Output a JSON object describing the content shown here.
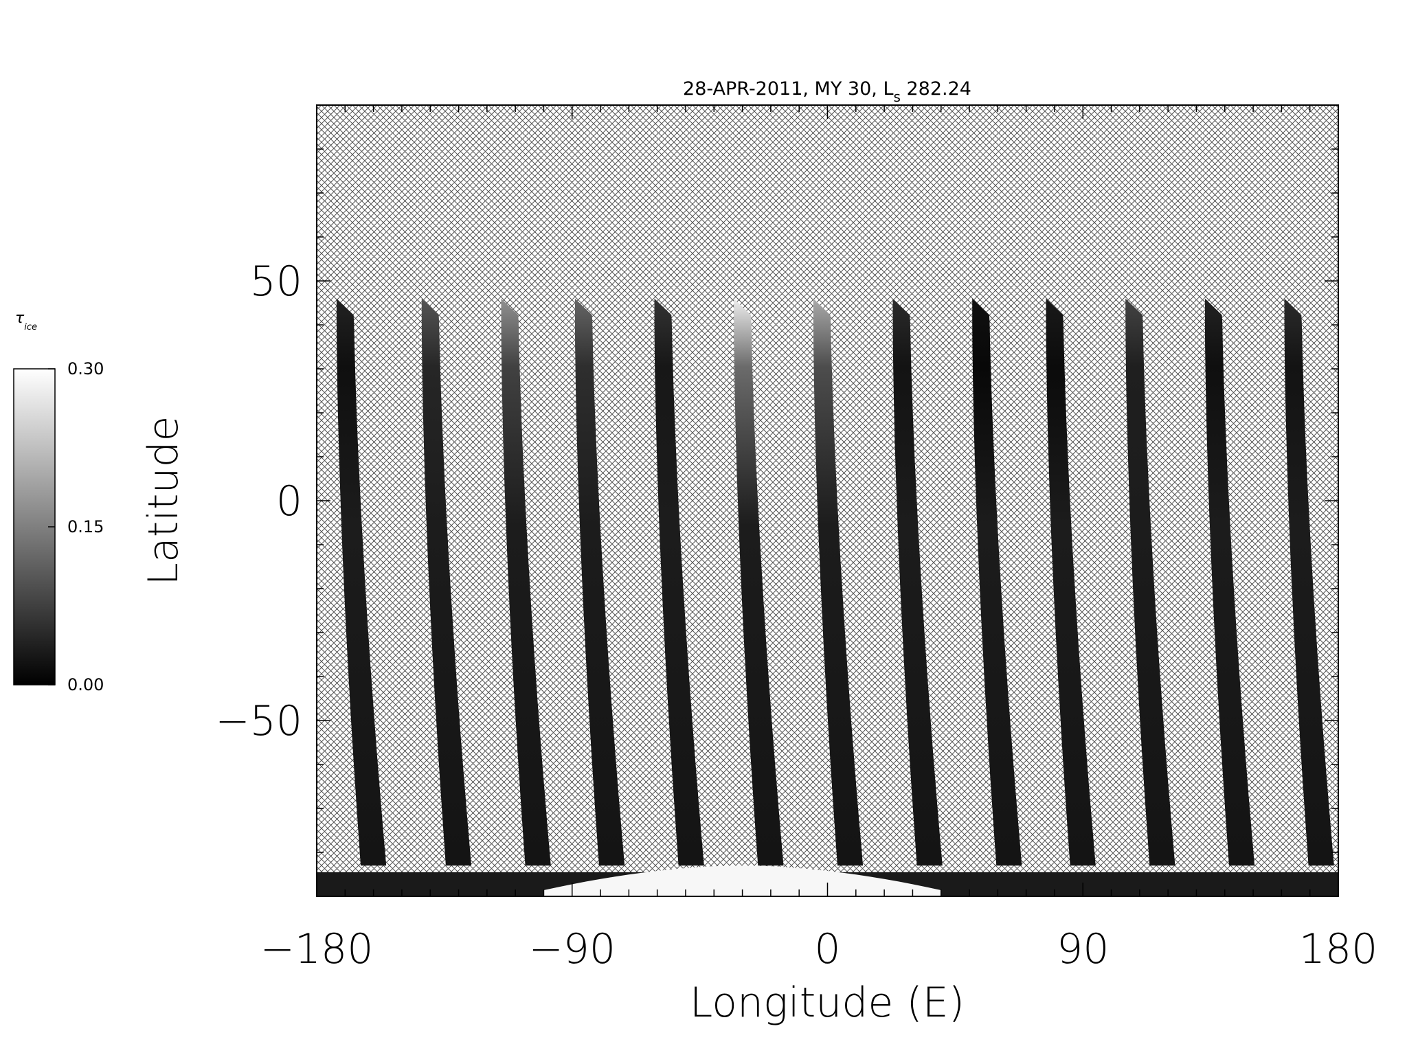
{
  "chart_data": {
    "type": "heatmap",
    "title": "28-APR-2011, MY 30,  L",
    "title_subscript": "s",
    "title_suffix": " 282.24",
    "xlabel": "Longitude (E)",
    "ylabel": "Latitude",
    "xlim": [
      -180,
      180
    ],
    "ylim": [
      -90,
      90
    ],
    "xticks": [
      -180,
      -90,
      0,
      90,
      180
    ],
    "xtick_labels": [
      "−180",
      "−90",
      "0",
      "90",
      "180"
    ],
    "yticks": [
      -50,
      0,
      50
    ],
    "ytick_labels": [
      "−50",
      "0",
      "50"
    ],
    "x_minor_step": 10,
    "y_minor_step": 10,
    "no_data_pattern": "crosshatch",
    "swath_top_latitude": 46,
    "swath_bottom_latitude": -83,
    "swath_centers_lon_at_top": [
      -170,
      -140,
      -112,
      -86,
      -58,
      -30,
      -2,
      26,
      54,
      80,
      108,
      136,
      164
    ],
    "swath_peak_tau": [
      0.04,
      0.1,
      0.17,
      0.12,
      0.06,
      0.28,
      0.2,
      0.05,
      0.02,
      0.03,
      0.08,
      0.04,
      0.05
    ],
    "polar_cap_tau": 0.3,
    "colorbar": {
      "label": "τ",
      "label_subscript": "ice",
      "min": 0.0,
      "max": 0.3,
      "ticks": [
        0.0,
        0.15,
        0.3
      ],
      "tick_labels": [
        "0.00",
        "0.15",
        "0.30"
      ],
      "colormap": "grayscale (black to white)"
    }
  }
}
